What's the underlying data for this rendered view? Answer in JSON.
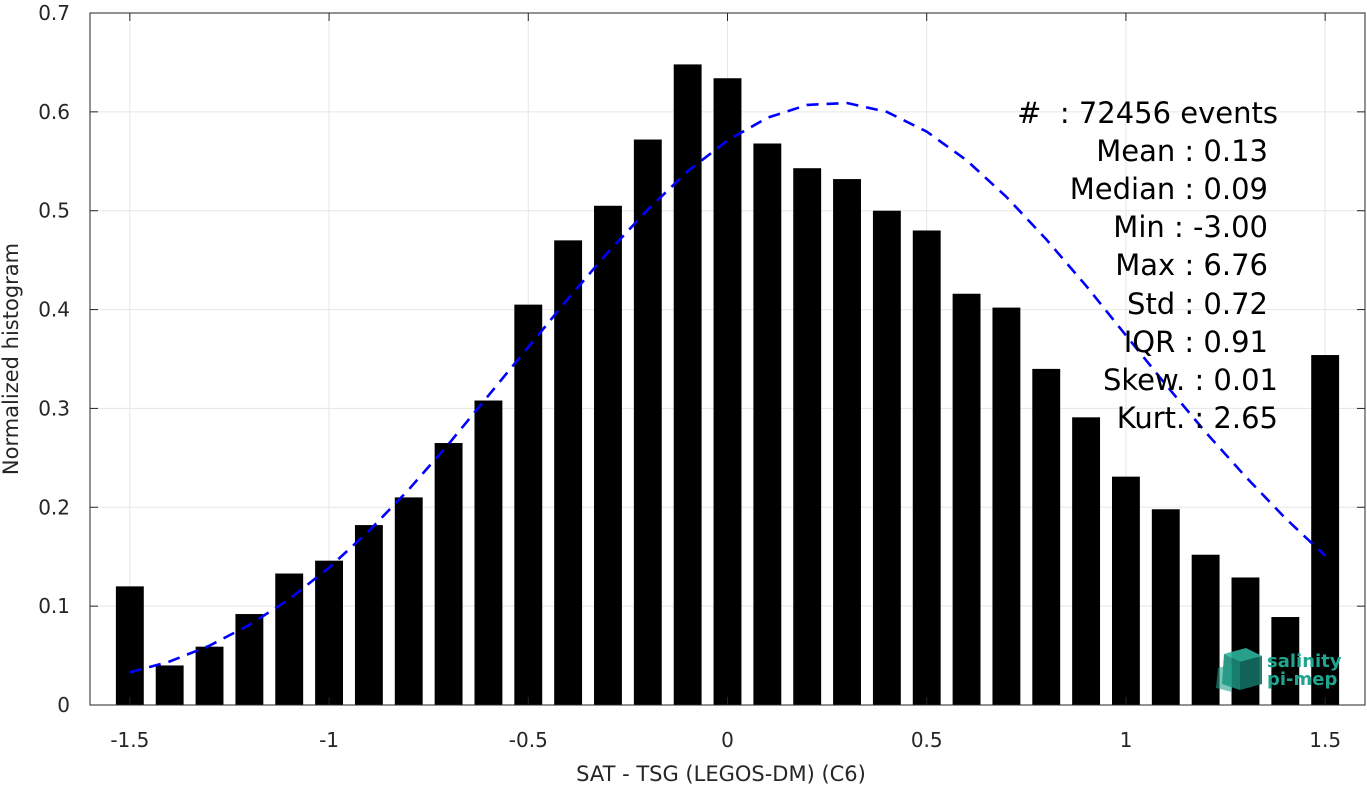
{
  "chart_data": {
    "type": "bar",
    "xlabel": "SAT - TSG (LEGOS-DM) (C6)",
    "ylabel": "Normalized histogram",
    "xlim": [
      -1.6,
      1.6
    ],
    "ylim": [
      0,
      0.7
    ],
    "grid": true,
    "xticks": [
      -1.5,
      -1,
      -0.5,
      0,
      0.5,
      1,
      1.5
    ],
    "xtick_labels": [
      "-1.5",
      "-1",
      "-0.5",
      "0",
      "0.5",
      "1",
      "1.5"
    ],
    "yticks": [
      0,
      0.1,
      0.2,
      0.3,
      0.4,
      0.5,
      0.6,
      0.7
    ],
    "ytick_labels": [
      "0",
      "0.1",
      "0.2",
      "0.3",
      "0.4",
      "0.5",
      "0.6",
      "0.7"
    ],
    "bar_width": 0.07,
    "bar_color": "#000000",
    "x": [
      -1.5,
      -1.4,
      -1.3,
      -1.2,
      -1.1,
      -1.0,
      -0.9,
      -0.8,
      -0.7,
      -0.6,
      -0.5,
      -0.4,
      -0.3,
      -0.2,
      -0.1,
      0.0,
      0.1,
      0.2,
      0.3,
      0.4,
      0.5,
      0.6,
      0.7,
      0.8,
      0.9,
      1.0,
      1.1,
      1.2,
      1.3,
      1.4,
      1.5
    ],
    "values": [
      0.12,
      0.04,
      0.059,
      0.092,
      0.133,
      0.146,
      0.182,
      0.21,
      0.265,
      0.308,
      0.405,
      0.47,
      0.505,
      0.572,
      0.648,
      0.634,
      0.568,
      0.543,
      0.532,
      0.5,
      0.48,
      0.416,
      0.402,
      0.34,
      0.291,
      0.231,
      0.198,
      0.152,
      0.129,
      0.089,
      0.354
    ],
    "fit_curve": {
      "style": "dashed",
      "color": "#0000ff",
      "x": [
        -1.5,
        -1.4,
        -1.3,
        -1.2,
        -1.1,
        -1.0,
        -0.9,
        -0.8,
        -0.7,
        -0.6,
        -0.5,
        -0.4,
        -0.3,
        -0.2,
        -0.1,
        0.0,
        0.1,
        0.2,
        0.3,
        0.4,
        0.5,
        0.6,
        0.7,
        0.8,
        0.9,
        1.0,
        1.1,
        1.2,
        1.3,
        1.4,
        1.5
      ],
      "y": [
        0.033,
        0.044,
        0.06,
        0.081,
        0.107,
        0.139,
        0.176,
        0.218,
        0.264,
        0.313,
        0.362,
        0.411,
        0.458,
        0.501,
        0.54,
        0.571,
        0.594,
        0.607,
        0.609,
        0.6,
        0.58,
        0.551,
        0.514,
        0.471,
        0.424,
        0.374,
        0.324,
        0.276,
        0.231,
        0.189,
        0.151
      ]
    },
    "annotations": {
      "position": "top-right",
      "lines": [
        "#  : 72456 events",
        "Mean : 0.13",
        "Median : 0.09",
        "Min : -3.00",
        "Max : 6.76",
        "Std : 0.72",
        "IQR : 0.91",
        "Skew. : 0.01",
        "Kurt. : 2.65"
      ]
    }
  },
  "logo": {
    "line1": "salinity",
    "line2": "pi-mep",
    "color": "#1fa58f"
  }
}
